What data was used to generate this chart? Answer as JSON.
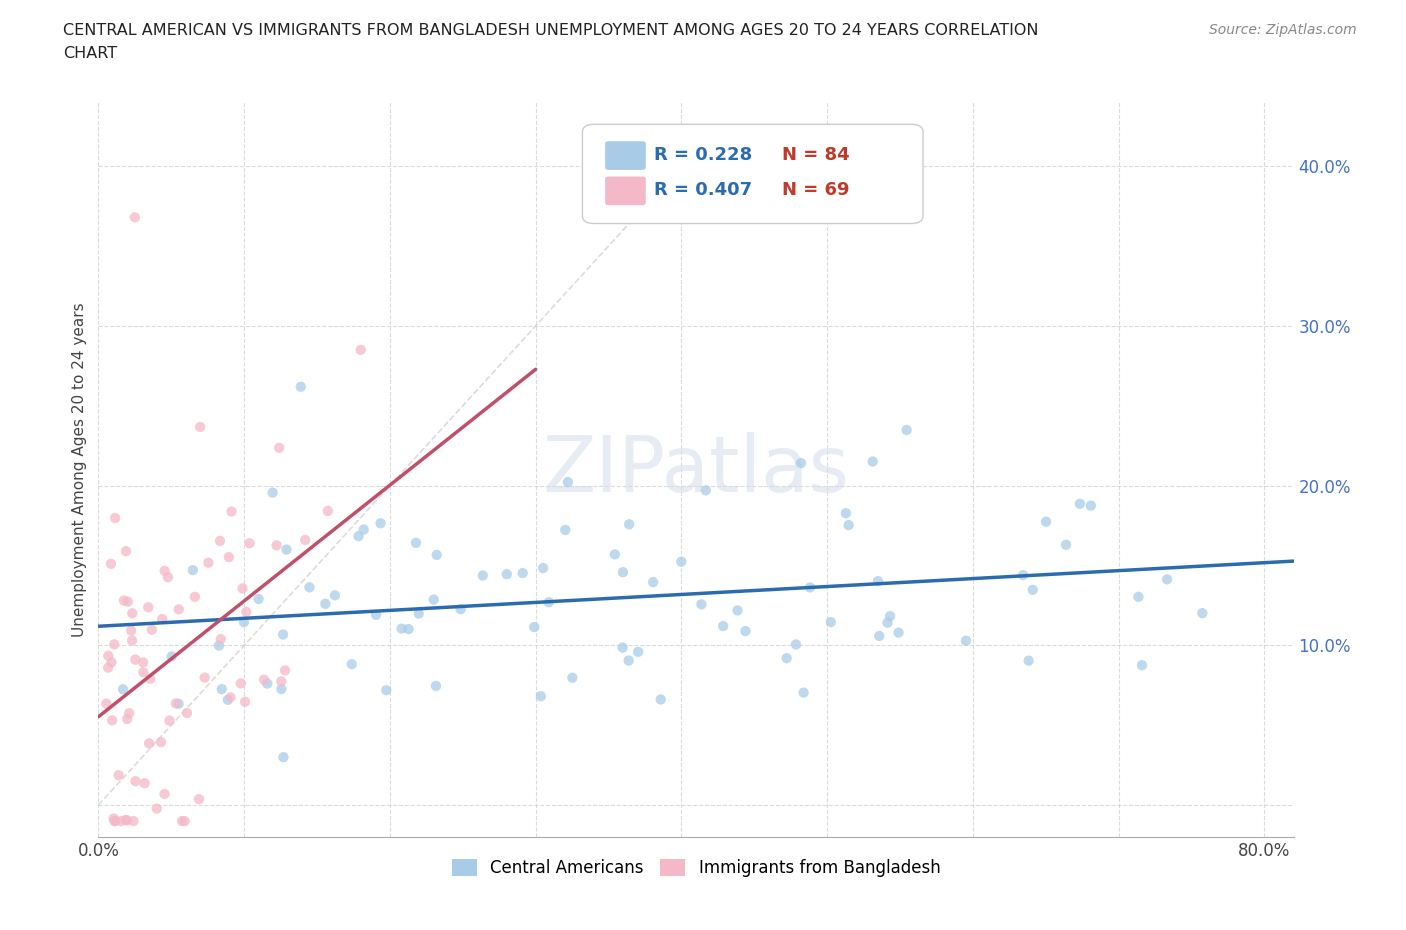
{
  "title_line1": "CENTRAL AMERICAN VS IMMIGRANTS FROM BANGLADESH UNEMPLOYMENT AMONG AGES 20 TO 24 YEARS CORRELATION",
  "title_line2": "CHART",
  "source": "Source: ZipAtlas.com",
  "ylabel": "Unemployment Among Ages 20 to 24 years",
  "xlim": [
    0.0,
    0.82
  ],
  "ylim": [
    -0.02,
    0.44
  ],
  "xticks": [
    0.0,
    0.1,
    0.2,
    0.3,
    0.4,
    0.5,
    0.6,
    0.7,
    0.8
  ],
  "xticklabels": [
    "0.0%",
    "",
    "",
    "",
    "",
    "",
    "",
    "",
    "80.0%"
  ],
  "yticks": [
    0.0,
    0.1,
    0.2,
    0.3,
    0.4
  ],
  "yticklabels": [
    "",
    "10.0%",
    "20.0%",
    "30.0%",
    "40.0%"
  ],
  "blue_color": "#a8cce8",
  "pink_color": "#f4b8c8",
  "blue_line_color": "#2b6cb0",
  "pink_line_color": "#c0506a",
  "diag_line_color": "#cccccc",
  "watermark": "ZIPatlas",
  "legend_R_blue": "R = 0.228",
  "legend_N_blue": "N = 84",
  "legend_R_pink": "R = 0.407",
  "legend_N_pink": "N = 69",
  "legend_label_blue": "Central Americans",
  "legend_label_pink": "Immigrants from Bangladesh",
  "background_color": "#ffffff",
  "grid_color": "#cccccc",
  "yaxis_label_color": "#4472c4",
  "title_color": "#222222"
}
